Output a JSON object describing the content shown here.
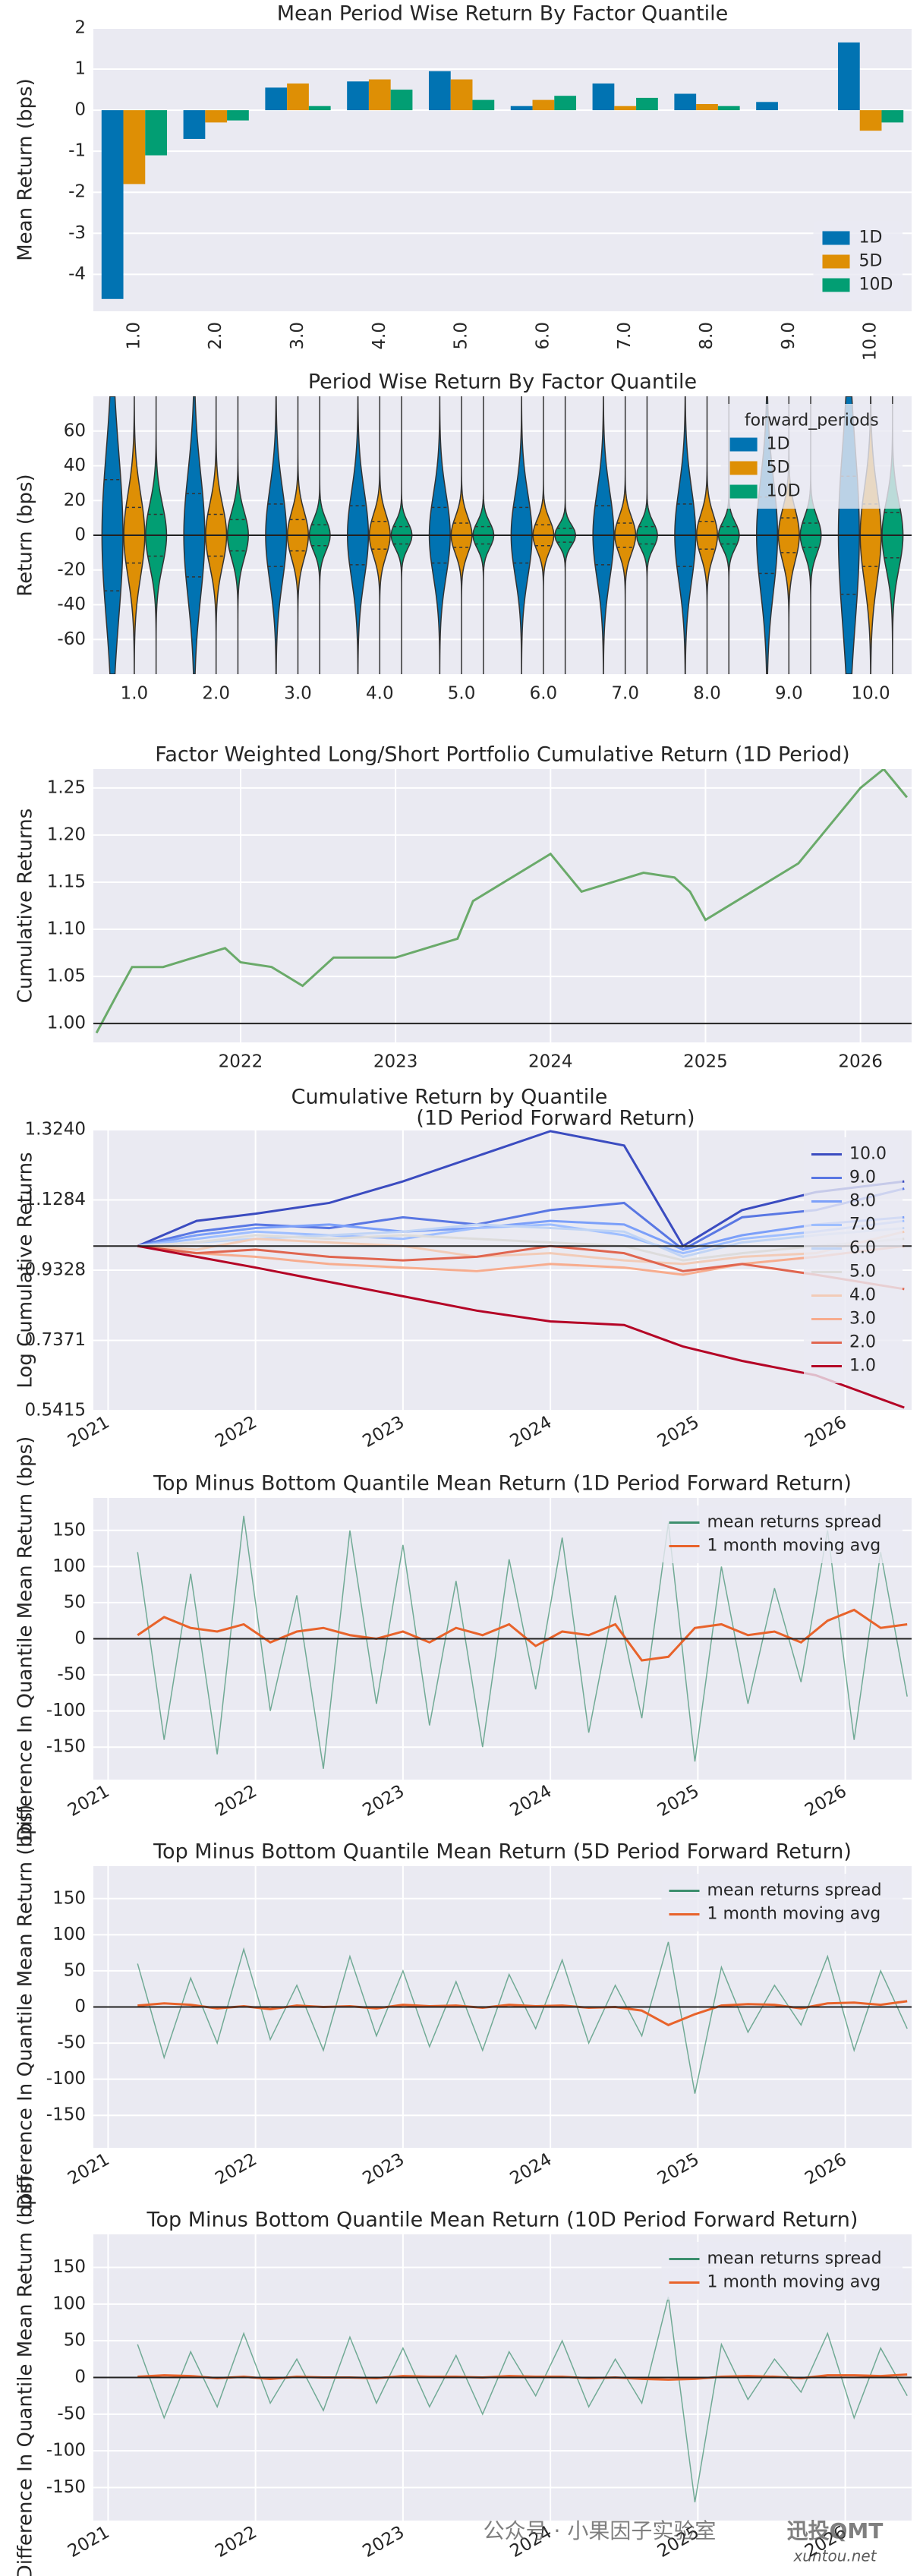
{
  "chart_data": [
    {
      "type": "bar",
      "title": "Mean Period Wise Return By Factor Quantile",
      "ylabel": "Mean Return (bps)",
      "categories": [
        "1.0",
        "2.0",
        "3.0",
        "4.0",
        "5.0",
        "6.0",
        "7.0",
        "8.0",
        "9.0",
        "10.0"
      ],
      "series": [
        {
          "name": "1D",
          "color": "#0173b2",
          "values": [
            -4.6,
            -0.7,
            0.55,
            0.7,
            0.95,
            0.1,
            0.65,
            0.4,
            0.2,
            1.65
          ]
        },
        {
          "name": "5D",
          "color": "#de8f05",
          "values": [
            -1.8,
            -0.3,
            0.65,
            0.75,
            0.75,
            0.25,
            0.1,
            0.15,
            0.0,
            -0.5
          ]
        },
        {
          "name": "10D",
          "color": "#029e73",
          "values": [
            -1.1,
            -0.25,
            0.1,
            0.5,
            0.25,
            0.35,
            0.3,
            0.1,
            0.0,
            -0.3
          ]
        }
      ],
      "ylim": [
        -4.9,
        2
      ],
      "yticks": [
        -4,
        -3,
        -2,
        -1,
        0,
        1,
        2
      ],
      "grid": true,
      "legend": "lower right"
    },
    {
      "type": "violin",
      "title": "Period Wise Return By Factor Quantile",
      "ylabel": "Return (bps)",
      "categories": [
        "1.0",
        "2.0",
        "3.0",
        "4.0",
        "5.0",
        "6.0",
        "7.0",
        "8.0",
        "9.0",
        "10.0"
      ],
      "series": [
        {
          "name": "1D",
          "color": "#0173b2",
          "values": [
            0,
            0,
            0,
            0,
            0,
            0,
            0,
            0,
            0,
            0
          ],
          "q1": [
            -32,
            -24,
            -18,
            -17,
            -16,
            -16,
            -17,
            -18,
            -22,
            -34
          ],
          "q3": [
            32,
            24,
            18,
            17,
            16,
            16,
            17,
            18,
            22,
            34
          ]
        },
        {
          "name": "5D",
          "color": "#de8f05",
          "values": [
            0,
            0,
            0,
            0,
            0,
            0,
            0,
            0,
            0,
            0
          ],
          "q1": [
            -16,
            -12,
            -9,
            -8,
            -7,
            -6,
            -7,
            -8,
            -10,
            -18
          ],
          "q3": [
            16,
            12,
            9,
            8,
            7,
            6,
            7,
            8,
            10,
            18
          ]
        },
        {
          "name": "10D",
          "color": "#029e73",
          "values": [
            0,
            0,
            0,
            0,
            0,
            0,
            0,
            0,
            0,
            0
          ],
          "q1": [
            -12,
            -9,
            -6,
            -5,
            -5,
            -4,
            -5,
            -5,
            -7,
            -13
          ],
          "q3": [
            12,
            9,
            6,
            5,
            5,
            4,
            5,
            5,
            7,
            13
          ]
        }
      ],
      "ylim": [
        -80,
        80
      ],
      "yticks": [
        -60,
        -40,
        -20,
        0,
        20,
        40,
        60
      ],
      "grid": true,
      "hline": 0,
      "legend": "upper right",
      "legend_title": "forward_periods"
    },
    {
      "type": "line",
      "title": "Factor Weighted Long/Short Portfolio Cumulative Return (1D Period)",
      "ylabel": "Cumulative Returns",
      "x": [
        2021.07,
        2021.2,
        2021.3,
        2021.5,
        2021.7,
        2021.9,
        2022.0,
        2022.2,
        2022.4,
        2022.6,
        2022.8,
        2023.0,
        2023.2,
        2023.4,
        2023.5,
        2023.7,
        2023.9,
        2024.0,
        2024.2,
        2024.4,
        2024.6,
        2024.8,
        2024.9,
        2025.0,
        2025.2,
        2025.4,
        2025.6,
        2025.8,
        2026.0,
        2026.15,
        2026.3
      ],
      "series": [
        {
          "color": "#6aaa6a",
          "values": [
            0.99,
            1.03,
            1.06,
            1.06,
            1.07,
            1.08,
            1.065,
            1.06,
            1.04,
            1.07,
            1.07,
            1.07,
            1.08,
            1.09,
            1.13,
            1.15,
            1.17,
            1.18,
            1.14,
            1.15,
            1.16,
            1.155,
            1.14,
            1.11,
            1.13,
            1.15,
            1.17,
            1.21,
            1.25,
            1.27,
            1.24
          ]
        }
      ],
      "xlim": [
        2021.05,
        2026.33
      ],
      "xticks": [
        2022,
        2023,
        2024,
        2025,
        2026
      ],
      "ylim": [
        0.98,
        1.27
      ],
      "yticks": [
        {
          "value": 1,
          "label": "1.00"
        },
        1.05,
        {
          "value": 1.1,
          "label": "1.10"
        },
        1.15,
        {
          "value": 1.2,
          "label": "1.20"
        },
        1.25
      ],
      "grid": true,
      "hline": 1
    },
    {
      "type": "line",
      "title": "Cumulative Return by Quantile",
      "subtitle": "(1D Period Forward Return)",
      "ylabel": "Log Cumulative Returns",
      "x": [
        2021.2,
        2021.6,
        2022.0,
        2022.5,
        2023.0,
        2023.5,
        2024.0,
        2024.5,
        2024.9,
        2025.3,
        2025.8,
        2026.4
      ],
      "series": [
        {
          "name": "10.0",
          "color": "#3b4cc0",
          "values": [
            1.0,
            1.07,
            1.09,
            1.12,
            1.18,
            1.25,
            1.32,
            1.28,
            1.0,
            1.1,
            1.15,
            1.18
          ]
        },
        {
          "name": "9.0",
          "color": "#5977e3",
          "values": [
            1.0,
            1.04,
            1.06,
            1.05,
            1.08,
            1.06,
            1.1,
            1.12,
            0.99,
            1.08,
            1.1,
            1.16
          ]
        },
        {
          "name": "8.0",
          "color": "#7b9ff9",
          "values": [
            1.0,
            1.03,
            1.05,
            1.06,
            1.04,
            1.05,
            1.07,
            1.06,
            0.99,
            1.03,
            1.06,
            1.08
          ]
        },
        {
          "name": "7.0",
          "color": "#9ebeff",
          "values": [
            1.0,
            1.02,
            1.04,
            1.03,
            1.02,
            1.05,
            1.06,
            1.03,
            0.98,
            1.02,
            1.04,
            1.07
          ]
        },
        {
          "name": "6.0",
          "color": "#c0d4f5",
          "values": [
            1.0,
            1.01,
            1.02,
            1.03,
            1.04,
            1.06,
            1.05,
            1.04,
            0.97,
            1.01,
            1.03,
            1.05
          ]
        },
        {
          "name": "5.0",
          "color": "#dddcdc",
          "values": [
            1.0,
            1.01,
            1.03,
            1.02,
            1.03,
            1.02,
            1.01,
            1.0,
            0.96,
            0.98,
            1.0,
            1.02
          ]
        },
        {
          "name": "4.0",
          "color": "#f2cbb7",
          "values": [
            1.0,
            0.99,
            1.02,
            1.01,
            1.0,
            0.97,
            0.98,
            0.96,
            0.95,
            0.97,
            0.98,
            1.04
          ]
        },
        {
          "name": "3.0",
          "color": "#f7ac8e",
          "values": [
            1.0,
            0.98,
            0.97,
            0.95,
            0.94,
            0.93,
            0.95,
            0.94,
            0.92,
            0.95,
            0.97,
            1.0
          ]
        },
        {
          "name": "2.0",
          "color": "#e0654f",
          "values": [
            1.0,
            0.98,
            0.99,
            0.97,
            0.96,
            0.97,
            1.0,
            0.98,
            0.93,
            0.95,
            0.92,
            0.88
          ]
        },
        {
          "name": "1.0",
          "color": "#b40426",
          "values": [
            1.0,
            0.97,
            0.94,
            0.9,
            0.86,
            0.82,
            0.79,
            0.78,
            0.72,
            0.68,
            0.64,
            0.55
          ]
        }
      ],
      "xlim": [
        2020.9,
        2026.45
      ],
      "xticks": [
        2021,
        2022,
        2023,
        2024,
        2025,
        2026
      ],
      "ylim": [
        0.5415,
        1.324
      ],
      "yticks": [
        0.5415,
        0.7371,
        0.9328,
        1.1284,
        {
          "value": 1.324,
          "label": "1.3240"
        }
      ],
      "grid": true,
      "hline": 1,
      "legend": "upper right"
    },
    {
      "type": "line",
      "title": "Top Minus Bottom Quantile Mean Return (1D Period Forward Return)",
      "ylabel": "Difference In Quantile Mean Return (bps)",
      "x": [
        2021.2,
        2021.38,
        2021.56,
        2021.74,
        2021.92,
        2022.1,
        2022.28,
        2022.46,
        2022.64,
        2022.82,
        2023.0,
        2023.18,
        2023.36,
        2023.54,
        2023.72,
        2023.9,
        2024.08,
        2024.26,
        2024.44,
        2024.62,
        2024.8,
        2024.98,
        2025.16,
        2025.34,
        2025.52,
        2025.7,
        2025.88,
        2026.06,
        2026.24,
        2026.42
      ],
      "series": [
        {
          "name": "mean returns spread",
          "color": "#3d8f6e",
          "values": [
            120,
            -140,
            90,
            -160,
            170,
            -100,
            60,
            -180,
            150,
            -90,
            130,
            -120,
            80,
            -150,
            110,
            -70,
            140,
            -130,
            60,
            -110,
            160,
            -170,
            100,
            -90,
            70,
            -60,
            150,
            -140,
            120,
            -80
          ]
        },
        {
          "name": "1 month moving avg",
          "color": "#e8632b",
          "values": [
            5,
            30,
            15,
            10,
            20,
            -5,
            10,
            15,
            5,
            0,
            10,
            -5,
            15,
            5,
            20,
            -10,
            10,
            5,
            20,
            -30,
            -25,
            15,
            20,
            5,
            10,
            -5,
            25,
            40,
            15,
            20
          ]
        }
      ],
      "xlim": [
        2020.9,
        2026.45
      ],
      "xticks": [
        2021,
        2022,
        2023,
        2024,
        2025,
        2026
      ],
      "ylim": [
        -195,
        195
      ],
      "yticks": [
        -150,
        -100,
        -50,
        0,
        50,
        100,
        150
      ],
      "grid": true,
      "hline": 0,
      "legend": "upper right"
    },
    {
      "type": "line",
      "title": "Top Minus Bottom Quantile Mean Return (5D Period Forward Return)",
      "ylabel": "Difference In Quantile Mean Return (bps)",
      "x": [
        2021.2,
        2021.38,
        2021.56,
        2021.74,
        2021.92,
        2022.1,
        2022.28,
        2022.46,
        2022.64,
        2022.82,
        2023.0,
        2023.18,
        2023.36,
        2023.54,
        2023.72,
        2023.9,
        2024.08,
        2024.26,
        2024.44,
        2024.62,
        2024.8,
        2024.98,
        2025.16,
        2025.34,
        2025.52,
        2025.7,
        2025.88,
        2026.06,
        2026.24,
        2026.42
      ],
      "series": [
        {
          "name": "mean returns spread",
          "color": "#3d8f6e",
          "values": [
            60,
            -70,
            40,
            -50,
            80,
            -45,
            30,
            -60,
            70,
            -40,
            50,
            -55,
            35,
            -60,
            45,
            -30,
            65,
            -50,
            30,
            -40,
            90,
            -120,
            55,
            -35,
            30,
            -25,
            70,
            -60,
            50,
            -30
          ]
        },
        {
          "name": "1 month moving avg",
          "color": "#e8632b",
          "values": [
            2,
            5,
            3,
            -2,
            1,
            -3,
            2,
            0,
            1,
            -2,
            3,
            1,
            2,
            -1,
            3,
            1,
            2,
            -1,
            0,
            -5,
            -25,
            -10,
            2,
            4,
            3,
            -2,
            5,
            6,
            3,
            8
          ]
        }
      ],
      "xlim": [
        2020.9,
        2026.45
      ],
      "xticks": [
        2021,
        2022,
        2023,
        2024,
        2025,
        2026
      ],
      "ylim": [
        -195,
        195
      ],
      "yticks": [
        -150,
        -100,
        -50,
        0,
        50,
        100,
        150
      ],
      "grid": true,
      "hline": 0,
      "legend": "upper right"
    },
    {
      "type": "line",
      "title": "Top Minus Bottom Quantile Mean Return (10D Period Forward Return)",
      "ylabel": "Difference In Quantile Mean Return (bps)",
      "x": [
        2021.2,
        2021.38,
        2021.56,
        2021.74,
        2021.92,
        2022.1,
        2022.28,
        2022.46,
        2022.64,
        2022.82,
        2023.0,
        2023.18,
        2023.36,
        2023.54,
        2023.72,
        2023.9,
        2024.08,
        2024.26,
        2024.44,
        2024.62,
        2024.8,
        2024.98,
        2025.16,
        2025.34,
        2025.52,
        2025.7,
        2025.88,
        2026.06,
        2026.24,
        2026.42
      ],
      "series": [
        {
          "name": "mean returns spread",
          "color": "#3d8f6e",
          "values": [
            45,
            -55,
            35,
            -40,
            60,
            -35,
            25,
            -45,
            55,
            -35,
            40,
            -40,
            30,
            -50,
            35,
            -25,
            50,
            -40,
            25,
            -35,
            110,
            -170,
            45,
            -30,
            25,
            -20,
            60,
            -55,
            40,
            -25
          ]
        },
        {
          "name": "1 month moving avg",
          "color": "#e8632b",
          "values": [
            1,
            3,
            2,
            -1,
            1,
            -2,
            1,
            0,
            0,
            -1,
            2,
            1,
            1,
            0,
            2,
            1,
            1,
            -1,
            0,
            -2,
            -3,
            -2,
            1,
            2,
            1,
            -1,
            3,
            3,
            2,
            4
          ]
        }
      ],
      "xlim": [
        2020.9,
        2026.45
      ],
      "xticks": [
        2021,
        2022,
        2023,
        2024,
        2025,
        2026
      ],
      "ylim": [
        -195,
        195
      ],
      "yticks": [
        -150,
        -100,
        -50,
        0,
        50,
        100,
        150
      ],
      "grid": true,
      "hline": 0,
      "legend": "upper right"
    }
  ],
  "watermark": {
    "text": "公众号 · 小果因子实验室",
    "brand": "迅投QMT",
    "site": "xuntou.net"
  }
}
